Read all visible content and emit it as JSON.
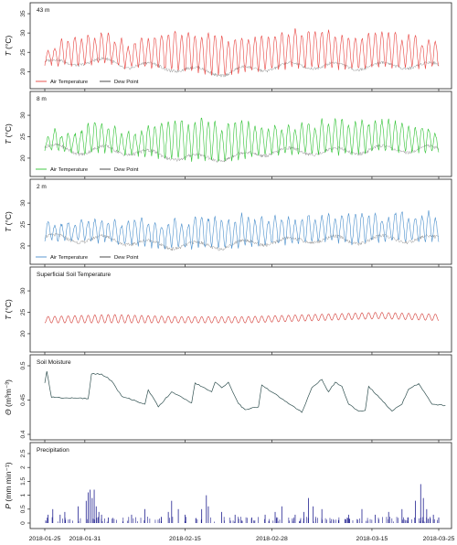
{
  "chart_data": {
    "type": "line",
    "date_ticks": [
      "2018-01-25",
      "2018-01-31",
      "2018-02-15",
      "2018-02-28",
      "2018-03-15",
      "2018-03-25"
    ],
    "x_range": [
      "2018-01-25",
      "2018-03-25"
    ],
    "colors": {
      "red": "#e8423f",
      "green": "#2ec232",
      "blue": "#4a8fcc",
      "soil": "#d9544f",
      "moisture": "#2f4f4f",
      "precip": "#1f1f8f",
      "dew": "#000000"
    },
    "panels": [
      {
        "label": "43 m",
        "ylabel_var": "T",
        "ylabel_unit": "(°C)",
        "yticks": [
          20,
          25,
          30,
          35
        ],
        "ylim": [
          17,
          35
        ],
        "legend": [
          "Air Temperature",
          "Dew Point"
        ],
        "series": [
          {
            "name": "Air Temperature",
            "color": "red",
            "style": "diurnal",
            "values": [
              [
                0,
                22,
                26
              ],
              [
                3,
                21.5,
                27.5
              ],
              [
                6,
                22,
                29
              ],
              [
                8,
                22,
                29.5
              ],
              [
                10,
                22,
                29
              ],
              [
                12,
                21,
                27
              ],
              [
                15,
                21,
                28
              ],
              [
                18,
                20.5,
                29
              ],
              [
                21,
                20,
                30
              ],
              [
                24,
                19.5,
                30
              ],
              [
                27,
                19,
                28
              ],
              [
                30,
                20,
                29.5
              ],
              [
                34,
                20.5,
                29
              ],
              [
                37,
                21,
                30
              ],
              [
                40,
                21,
                30.5
              ],
              [
                43,
                21,
                30
              ],
              [
                46,
                20.5,
                29.5
              ],
              [
                49,
                21,
                30
              ],
              [
                52,
                21,
                29.5
              ],
              [
                55,
                21,
                28.5
              ],
              [
                58,
                21,
                27.5
              ],
              [
                60,
                21,
                26.5
              ]
            ]
          }
        ]
      },
      {
        "label": "8 m",
        "ylabel_var": "T",
        "ylabel_unit": "(°C)",
        "yticks": [
          20,
          25,
          30
        ],
        "ylim": [
          17,
          33
        ],
        "legend": [
          "Air Temperature",
          "Dew Point"
        ],
        "series": [
          {
            "name": "Air Temperature",
            "color": "green",
            "style": "diurnal",
            "values": [
              [
                0,
                22,
                25
              ],
              [
                3,
                21.5,
                26
              ],
              [
                6,
                21,
                27.5
              ],
              [
                9,
                21.5,
                28
              ],
              [
                12,
                21,
                26
              ],
              [
                15,
                20.5,
                27
              ],
              [
                18,
                20,
                27.5
              ],
              [
                21,
                19.5,
                28
              ],
              [
                24,
                19.5,
                28.5
              ],
              [
                27,
                19.5,
                27
              ],
              [
                30,
                20,
                28
              ],
              [
                34,
                21,
                27
              ],
              [
                37,
                21,
                27.5
              ],
              [
                40,
                21,
                28
              ],
              [
                43,
                21,
                28
              ],
              [
                46,
                21,
                28.5
              ],
              [
                49,
                21.5,
                28
              ],
              [
                52,
                21.5,
                28
              ],
              [
                55,
                21.5,
                27
              ],
              [
                58,
                21.5,
                27
              ],
              [
                60,
                21,
                25.5
              ]
            ]
          }
        ]
      },
      {
        "label": "2 m",
        "ylabel_var": "T",
        "ylabel_unit": "(°C)",
        "yticks": [
          20,
          25,
          30
        ],
        "ylim": [
          17,
          33
        ],
        "legend": [
          "Air Temperature",
          "Dew Point"
        ],
        "series": [
          {
            "name": "Air Temperature",
            "color": "blue",
            "style": "diurnal",
            "values": [
              [
                0,
                21.5,
                24.5
              ],
              [
                3,
                21,
                25.5
              ],
              [
                6,
                21,
                26
              ],
              [
                9,
                21,
                26
              ],
              [
                12,
                20.5,
                25
              ],
              [
                15,
                20,
                25.5
              ],
              [
                18,
                19.5,
                25.5
              ],
              [
                21,
                19.5,
                26
              ],
              [
                24,
                19.5,
                26.5
              ],
              [
                27,
                19.5,
                26
              ],
              [
                30,
                20,
                26.5
              ],
              [
                34,
                20.5,
                26
              ],
              [
                37,
                20.5,
                26
              ],
              [
                40,
                21,
                26.5
              ],
              [
                43,
                21,
                26.5
              ],
              [
                46,
                20.5,
                26.5
              ],
              [
                49,
                21,
                27
              ],
              [
                52,
                21,
                27
              ],
              [
                55,
                21,
                27
              ],
              [
                58,
                21,
                27
              ],
              [
                60,
                21,
                25
              ]
            ]
          }
        ]
      },
      {
        "label": "Superficial Soil Temperature",
        "ylabel_var": "T",
        "ylabel_unit": "(°C)",
        "yticks": [
          20,
          25,
          30
        ],
        "ylim": [
          17,
          33
        ],
        "legend": [],
        "series": [
          {
            "name": "",
            "color": "soil",
            "style": "sine",
            "values": [
              [
                0,
                22.5,
                24
              ],
              [
                10,
                22.5,
                24.5
              ],
              [
                20,
                22.5,
                24
              ],
              [
                30,
                22.5,
                24
              ],
              [
                40,
                23,
                24.5
              ],
              [
                50,
                23.5,
                25
              ],
              [
                60,
                23,
                24.5
              ]
            ]
          }
        ]
      },
      {
        "label": "Soil Moisture",
        "ylabel_var": "Θ",
        "ylabel_unit": "(m³m⁻³)",
        "yticks": [
          0.4,
          0.45,
          0.5
        ],
        "ylim": [
          0.4,
          0.5
        ],
        "legend": [],
        "series": [
          {
            "name": "",
            "color": "moisture",
            "style": "steps",
            "values": [
              [
                0,
                0.475
              ],
              [
                0.3,
                0.492
              ],
              [
                1,
                0.454
              ],
              [
                6.5,
                0.452
              ],
              [
                7,
                0.488
              ],
              [
                8.5,
                0.488
              ],
              [
                10,
                0.478
              ],
              [
                11.5,
                0.456
              ],
              [
                15,
                0.444
              ],
              [
                15.5,
                0.465
              ],
              [
                17,
                0.44
              ],
              [
                19,
                0.462
              ],
              [
                22,
                0.446
              ],
              [
                22.5,
                0.475
              ],
              [
                25,
                0.462
              ],
              [
                25.5,
                0.476
              ],
              [
                26.5,
                0.468
              ],
              [
                27.5,
                0.476
              ],
              [
                29,
                0.445
              ],
              [
                30,
                0.436
              ],
              [
                32,
                0.44
              ],
              [
                32.5,
                0.472
              ],
              [
                36.5,
                0.445
              ],
              [
                38.5,
                0.432
              ],
              [
                40,
                0.468
              ],
              [
                41.5,
                0.48
              ],
              [
                42.5,
                0.462
              ],
              [
                43.5,
                0.476
              ],
              [
                44.5,
                0.47
              ],
              [
                45.5,
                0.444
              ],
              [
                47,
                0.434
              ],
              [
                48,
                0.435
              ],
              [
                48.5,
                0.47
              ],
              [
                52,
                0.434
              ],
              [
                53.5,
                0.444
              ],
              [
                54.5,
                0.466
              ],
              [
                56,
                0.474
              ],
              [
                58,
                0.444
              ],
              [
                60,
                0.442
              ]
            ]
          }
        ]
      },
      {
        "label": "Precipitation",
        "ylabel_var": "P",
        "ylabel_unit": "(mm min⁻¹)",
        "yticks": [
          0,
          0.5,
          1,
          1.5,
          2,
          2.5
        ],
        "ylim": [
          0,
          2.5
        ],
        "legend": [],
        "series": [
          {
            "name": "",
            "color": "precip",
            "style": "bars",
            "values": [
              [
                0.5,
                0.3
              ],
              [
                1.2,
                0.5
              ],
              [
                2.3,
                0.3
              ],
              [
                3,
                0.4
              ],
              [
                5,
                0.6
              ],
              [
                6.2,
                0.8
              ],
              [
                6.5,
                1.1
              ],
              [
                6.8,
                1.2
              ],
              [
                7.1,
                0.9
              ],
              [
                7.4,
                1.2
              ],
              [
                7.7,
                0.6
              ],
              [
                8.1,
                0.4
              ],
              [
                8.5,
                0.3
              ],
              [
                9.5,
                0.2
              ],
              [
                13,
                0.3
              ],
              [
                15,
                0.5
              ],
              [
                18.5,
                0.4
              ],
              [
                19,
                0.8
              ],
              [
                20,
                0.5
              ],
              [
                21,
                0.3
              ],
              [
                23.5,
                0.5
              ],
              [
                24.2,
                1.0
              ],
              [
                24.5,
                0.6
              ],
              [
                26.5,
                0.4
              ],
              [
                28.5,
                0.3
              ],
              [
                31,
                0.2
              ],
              [
                33,
                0.3
              ],
              [
                34.5,
                0.4
              ],
              [
                35.5,
                0.6
              ],
              [
                37.5,
                0.3
              ],
              [
                38.8,
                0.4
              ],
              [
                39.5,
                0.9
              ],
              [
                40.2,
                0.6
              ],
              [
                41.5,
                0.5
              ],
              [
                45.5,
                0.3
              ],
              [
                47.5,
                0.5
              ],
              [
                49.5,
                0.3
              ],
              [
                51.5,
                0.4
              ],
              [
                53.5,
                0.5
              ],
              [
                55.5,
                0.8
              ],
              [
                56.3,
                1.4
              ],
              [
                56.7,
                0.9
              ],
              [
                57.2,
                0.5
              ],
              [
                58.2,
                0.3
              ],
              [
                59,
                0.2
              ]
            ]
          }
        ]
      }
    ]
  }
}
